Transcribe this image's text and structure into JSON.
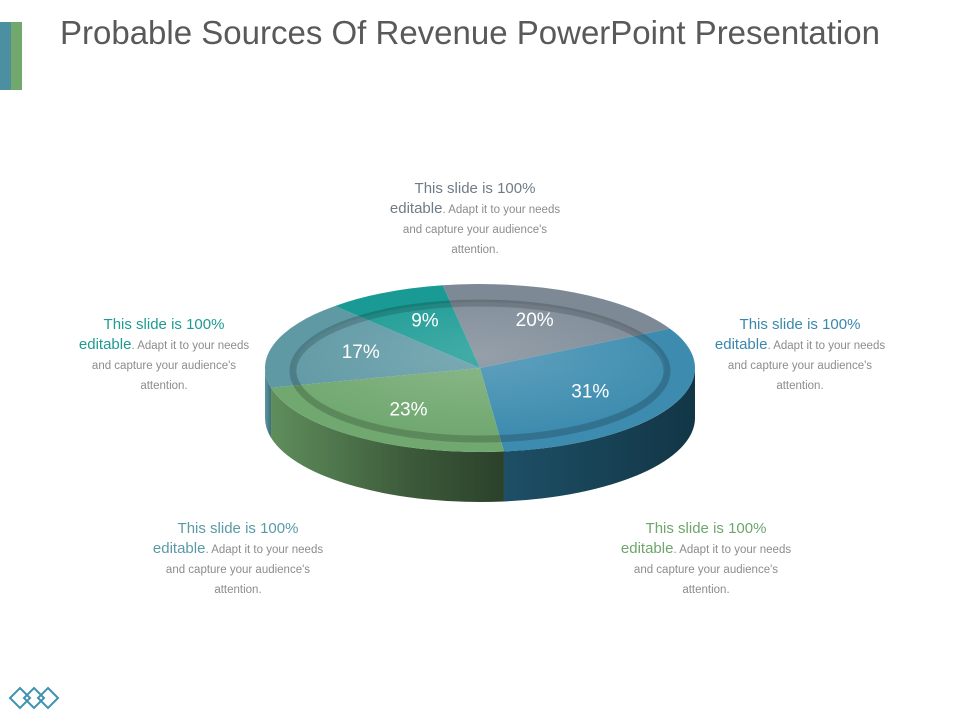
{
  "slide": {
    "title": "Probable Sources Of Revenue PowerPoint Presentation"
  },
  "colors": {
    "accent_teal": "#4c8fa0",
    "accent_green": "#72a86e",
    "slate": "#7d8a96",
    "blue": "#3d8caf",
    "green": "#71a870",
    "steel_teal": "#5f99a4",
    "teal": "#1a9a94",
    "callout_gray": "#6f7b86",
    "callout_blue": "#3b87aa",
    "callout_teal": "#1f9a94",
    "callout_steel": "#5a9aa6",
    "callout_green": "#6ea66c",
    "logo": "#3f93b0"
  },
  "chart_data": {
    "type": "pie",
    "title": "",
    "slices": [
      {
        "value": 20,
        "label": "20%"
      },
      {
        "value": 31,
        "label": "31%"
      },
      {
        "value": 23,
        "label": "23%"
      },
      {
        "value": 17,
        "label": "17%"
      },
      {
        "value": 9,
        "label": "9%"
      }
    ]
  },
  "callouts": [
    {
      "head": "This slide is 100%",
      "emph": "editable",
      "body": ". Adapt it to your needs and capture your audience's attention."
    },
    {
      "head": "This slide is 100%",
      "emph": "editable",
      "body": ". Adapt it to your needs and capture your audience's attention."
    },
    {
      "head": "This slide is 100%",
      "emph": "editable",
      "body": ". Adapt it to your needs and capture your audience's attention."
    },
    {
      "head": "This slide is 100%",
      "emph": "editable",
      "body": ". Adapt it to your needs and capture your audience's attention."
    },
    {
      "head": "This slide is 100%",
      "emph": "editable",
      "body": ". Adapt it to your needs and capture your audience's attention."
    }
  ],
  "icons": {
    "logo": "diamond-chain-logo-icon"
  }
}
